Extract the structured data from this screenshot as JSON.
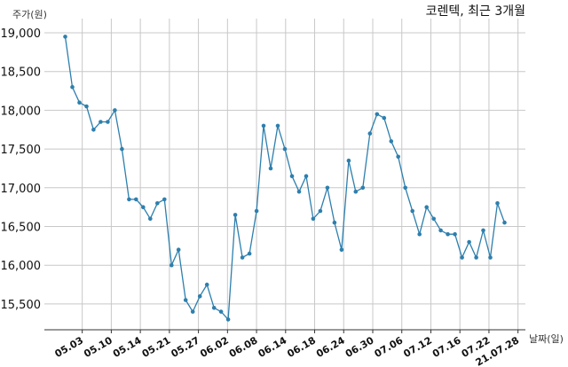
{
  "chart_data": {
    "type": "line",
    "title": "코렌텍, 최근 3개월",
    "ylabel": "주가(원)",
    "xlabel": "날짜(일)",
    "ylim": [
      15100,
      19100
    ],
    "yticks": [
      15500,
      16000,
      16500,
      17000,
      17500,
      18000,
      18500,
      19000
    ],
    "yticklabels": [
      "15,500",
      "16,000",
      "16,500",
      "17,000",
      "17,500",
      "18,000",
      "18,500",
      "19,000"
    ],
    "grid": true,
    "color": "#2e7fad",
    "xticks": [
      {
        "label": "05.03",
        "index": 2.4
      },
      {
        "label": "05.10",
        "index": 6.5
      },
      {
        "label": "05.14",
        "index": 10.6
      },
      {
        "label": "05.21",
        "index": 14.7
      },
      {
        "label": "05.27",
        "index": 18.8
      },
      {
        "label": "06.02",
        "index": 22.9
      },
      {
        "label": "06.08",
        "index": 27.0
      },
      {
        "label": "06.14",
        "index": 31.1
      },
      {
        "label": "06.18",
        "index": 35.2
      },
      {
        "label": "06.24",
        "index": 39.3
      },
      {
        "label": "06.30",
        "index": 43.4
      },
      {
        "label": "07.06",
        "index": 47.5
      },
      {
        "label": "07.12",
        "index": 51.6
      },
      {
        "label": "07.16",
        "index": 55.7
      },
      {
        "label": "07.22",
        "index": 59.8
      },
      {
        "label": "21.07.28",
        "index": 63.9
      }
    ],
    "values": [
      18950,
      18300,
      18100,
      18050,
      17750,
      17850,
      17850,
      18000,
      17500,
      16850,
      16850,
      16750,
      16600,
      16800,
      16850,
      16000,
      16200,
      15550,
      15400,
      15600,
      15750,
      15450,
      15400,
      15300,
      16650,
      16100,
      16150,
      16700,
      17800,
      17250,
      17800,
      17500,
      17150,
      16950,
      17150,
      16600,
      16700,
      17000,
      16550,
      16200,
      17350,
      16950,
      17000,
      17700,
      17950,
      17900,
      17600,
      17400,
      17000,
      16700,
      16400,
      16750,
      16600,
      16450,
      16400,
      16400,
      16100,
      16300,
      16100,
      16450,
      16100,
      16800,
      16550
    ]
  }
}
